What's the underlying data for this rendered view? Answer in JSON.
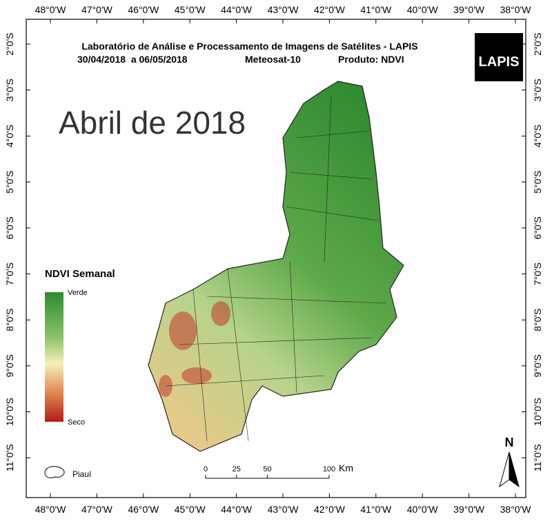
{
  "header": {
    "title": "Laboratório de Análise e Processamento de Imagens de Satélites - LAPIS",
    "period": "30/04/2018  a 06/05/2018",
    "satellite": "Meteosat-10",
    "product": "Produto: NDVI"
  },
  "logo": "LAPIS",
  "heading": "Abril de 2018",
  "graticule": {
    "longitudes": [
      "48°0'W",
      "47°0'W",
      "46°0'W",
      "45°0'W",
      "44°0'W",
      "43°0'W",
      "42°0'W",
      "41°0'W",
      "40°0'W",
      "39°0'W",
      "38°0'W"
    ],
    "latitudes": [
      "2°0'S",
      "3°0'S",
      "4°0'S",
      "5°0'S",
      "6°0'S",
      "7°0'S",
      "8°0'S",
      "9°0'S",
      "10°0'S",
      "11°0'S"
    ]
  },
  "legend": {
    "title": "NDVI Semanal",
    "high": "Verde",
    "low": "Seco",
    "boundary": "Piauí"
  },
  "scale_bar": {
    "ticks": [
      0,
      25,
      50,
      100
    ],
    "unit": "Km"
  },
  "north_arrow": "N"
}
